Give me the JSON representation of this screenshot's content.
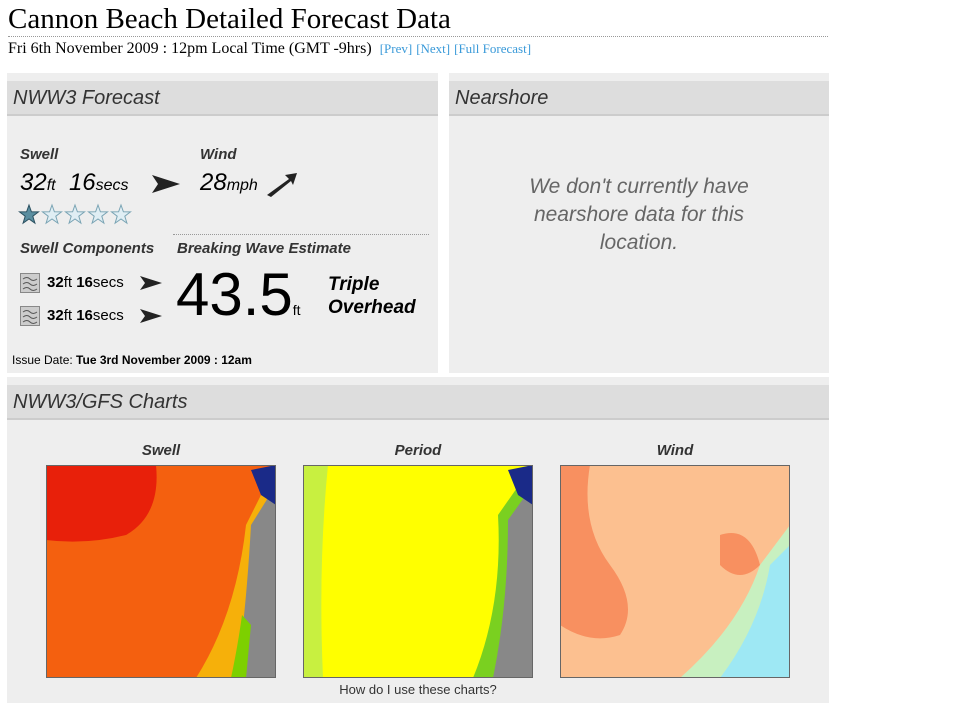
{
  "header": {
    "title": "Cannon Beach Detailed Forecast Data",
    "subtitle": "Fri 6th November 2009 : 12pm Local Time (GMT -9hrs)",
    "links": [
      "[Prev]",
      "[Next]",
      "[Full Forecast]"
    ]
  },
  "forecast": {
    "heading": "NWW3 Forecast",
    "swell": {
      "label": "Swell",
      "height": 32,
      "height_unit": "ft",
      "period": 16,
      "period_unit": "secs"
    },
    "wind": {
      "label": "Wind",
      "speed": 28,
      "unit": "mph"
    },
    "rating": 1,
    "components": {
      "label": "Swell Components",
      "rows": [
        {
          "height": 32,
          "height_unit": "ft",
          "period": 16,
          "period_unit": "secs"
        },
        {
          "height": 32,
          "height_unit": "ft",
          "period": 16,
          "period_unit": "secs"
        }
      ]
    },
    "breaking": {
      "label": "Breaking Wave Estimate",
      "value": 43.5,
      "unit": "ft",
      "description": "Triple Overhead"
    },
    "issue": {
      "label": "Issue Date:",
      "date": "Tue 3rd November 2009 : 12am"
    }
  },
  "nearshore": {
    "heading": "Nearshore",
    "message": "We don't currently have nearshore data for this location."
  },
  "charts": {
    "heading": "NWW3/GFS Charts",
    "items": [
      {
        "title": "Swell"
      },
      {
        "title": "Period"
      },
      {
        "title": "Wind"
      }
    ],
    "help": "How do I use these charts?"
  }
}
